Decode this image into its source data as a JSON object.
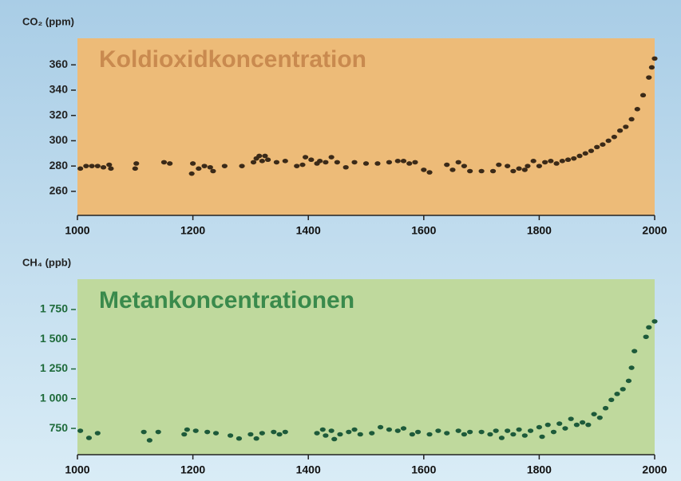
{
  "chart_data": [
    {
      "type": "scatter",
      "axis_label": "CO₂ (ppm)",
      "title": "Koldioxidkoncentration",
      "color": "#3b2a18",
      "plot_color": "#edbb78",
      "title_color": "#c98a4f",
      "tick_color": "#222222",
      "xlim": [
        1000,
        2000
      ],
      "xticks": [
        1000,
        1200,
        1400,
        1600,
        1800,
        2000
      ],
      "ylim": [
        241,
        381
      ],
      "yticks": [
        260,
        280,
        300,
        320,
        340,
        360
      ],
      "x": [
        1005,
        1015,
        1025,
        1035,
        1045,
        1055,
        1058,
        1100,
        1102,
        1150,
        1160,
        1198,
        1200,
        1210,
        1220,
        1230,
        1235,
        1255,
        1285,
        1305,
        1310,
        1315,
        1320,
        1325,
        1330,
        1345,
        1360,
        1380,
        1390,
        1395,
        1405,
        1415,
        1420,
        1430,
        1440,
        1450,
        1465,
        1480,
        1500,
        1520,
        1540,
        1555,
        1565,
        1575,
        1585,
        1600,
        1610,
        1640,
        1650,
        1660,
        1670,
        1680,
        1700,
        1720,
        1730,
        1745,
        1755,
        1765,
        1775,
        1780,
        1790,
        1800,
        1810,
        1820,
        1830,
        1840,
        1850,
        1860,
        1870,
        1880,
        1890,
        1900,
        1910,
        1920,
        1930,
        1940,
        1950,
        1960,
        1970,
        1980,
        1990,
        1995,
        2000
      ],
      "values": [
        278,
        280,
        280,
        280,
        279,
        281,
        278,
        278,
        282,
        283,
        282,
        274,
        282,
        278,
        280,
        279,
        276,
        280,
        280,
        283,
        286,
        288,
        284,
        288,
        285,
        283,
        284,
        280,
        281,
        287,
        285,
        282,
        284,
        283,
        287,
        283,
        279,
        283,
        282,
        282,
        283,
        284,
        284,
        282,
        283,
        277,
        275,
        281,
        277,
        283,
        280,
        276,
        276,
        276,
        281,
        280,
        276,
        278,
        277,
        280,
        284,
        280,
        283,
        284,
        282,
        284,
        285,
        286,
        288,
        290,
        292,
        295,
        297,
        300,
        303,
        308,
        311,
        317,
        325,
        336,
        350,
        358,
        365
      ]
    },
    {
      "type": "scatter",
      "axis_label": "CH₄ (ppb)",
      "title": "Metankoncentrationen",
      "color": "#1d5a3a",
      "plot_color": "#bfd99d",
      "title_color": "#3a8a4c",
      "tick_color": "#1e6a3a",
      "xlim": [
        1000,
        2000
      ],
      "xticks": [
        1000,
        1200,
        1400,
        1600,
        1800,
        2000
      ],
      "ylim": [
        529,
        2005
      ],
      "yticks": [
        750,
        {
          "value": 1000,
          "label": "1 000"
        },
        {
          "value": 1250,
          "label": "1 250"
        },
        {
          "value": 1500,
          "label": "1 500"
        },
        {
          "value": 1750,
          "label": "1 750"
        }
      ],
      "x": [
        1005,
        1020,
        1035,
        1115,
        1125,
        1140,
        1185,
        1190,
        1205,
        1225,
        1240,
        1265,
        1280,
        1300,
        1310,
        1320,
        1340,
        1350,
        1360,
        1415,
        1425,
        1430,
        1440,
        1445,
        1455,
        1470,
        1480,
        1490,
        1510,
        1525,
        1540,
        1555,
        1565,
        1580,
        1590,
        1610,
        1625,
        1640,
        1660,
        1670,
        1680,
        1700,
        1715,
        1725,
        1735,
        1745,
        1755,
        1765,
        1775,
        1785,
        1800,
        1805,
        1815,
        1825,
        1835,
        1845,
        1855,
        1865,
        1875,
        1885,
        1895,
        1905,
        1915,
        1925,
        1935,
        1945,
        1955,
        1960,
        1965,
        1985,
        1990,
        2000
      ],
      "values": [
        730,
        670,
        710,
        720,
        650,
        720,
        700,
        740,
        730,
        720,
        710,
        690,
        665,
        700,
        665,
        710,
        720,
        700,
        720,
        710,
        740,
        690,
        730,
        660,
        700,
        720,
        740,
        700,
        710,
        760,
        740,
        730,
        750,
        700,
        720,
        700,
        730,
        710,
        730,
        700,
        720,
        720,
        700,
        730,
        670,
        730,
        700,
        740,
        690,
        730,
        760,
        680,
        780,
        720,
        790,
        750,
        830,
        780,
        800,
        780,
        870,
        840,
        920,
        990,
        1040,
        1080,
        1150,
        1260,
        1400,
        1520,
        1600,
        1650
      ]
    }
  ]
}
